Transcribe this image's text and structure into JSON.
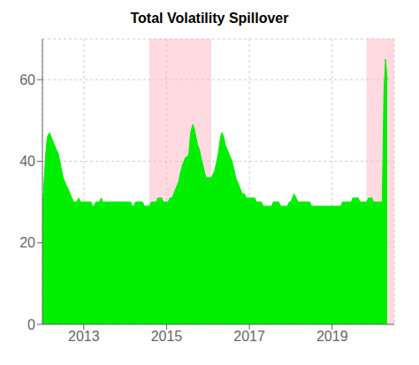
{
  "chart_data": {
    "type": "area",
    "title": "Total Volatility Spillover",
    "color": "#00ee00",
    "grid": true,
    "xlim": [
      2012.0,
      2020.5
    ],
    "xticks": [
      2013,
      2015,
      2017,
      2019
    ],
    "ylim": [
      0,
      70
    ],
    "yticks": [
      0,
      20,
      40,
      60
    ],
    "shaded_regions": {
      "color": "#ffb6c1",
      "ranges": [
        [
          2014.58,
          2016.08
        ],
        [
          2019.83,
          2020.5
        ]
      ]
    },
    "x": [
      2012.0,
      2012.04,
      2012.08,
      2012.12,
      2012.17,
      2012.21,
      2012.25,
      2012.29,
      2012.33,
      2012.38,
      2012.42,
      2012.46,
      2012.5,
      2012.54,
      2012.58,
      2012.63,
      2012.67,
      2012.71,
      2012.75,
      2012.79,
      2012.83,
      2012.88,
      2012.92,
      2012.96,
      2013.0,
      2013.04,
      2013.08,
      2013.13,
      2013.17,
      2013.21,
      2013.25,
      2013.29,
      2013.33,
      2013.38,
      2013.42,
      2013.46,
      2013.5,
      2013.54,
      2013.58,
      2013.63,
      2013.67,
      2013.71,
      2013.75,
      2013.79,
      2013.83,
      2013.88,
      2013.92,
      2013.96,
      2014.0,
      2014.04,
      2014.08,
      2014.13,
      2014.17,
      2014.21,
      2014.25,
      2014.29,
      2014.33,
      2014.38,
      2014.42,
      2014.46,
      2014.5,
      2014.54,
      2014.58,
      2014.63,
      2014.67,
      2014.71,
      2014.75,
      2014.79,
      2014.83,
      2014.88,
      2014.92,
      2014.96,
      2015.0,
      2015.04,
      2015.08,
      2015.13,
      2015.17,
      2015.21,
      2015.25,
      2015.29,
      2015.33,
      2015.38,
      2015.42,
      2015.46,
      2015.5,
      2015.54,
      2015.58,
      2015.63,
      2015.67,
      2015.71,
      2015.75,
      2015.79,
      2015.83,
      2015.88,
      2015.92,
      2015.96,
      2016.0,
      2016.04,
      2016.08,
      2016.13,
      2016.17,
      2016.21,
      2016.25,
      2016.29,
      2016.33,
      2016.38,
      2016.42,
      2016.46,
      2016.5,
      2016.54,
      2016.58,
      2016.63,
      2016.67,
      2016.71,
      2016.75,
      2016.79,
      2016.83,
      2016.88,
      2016.92,
      2016.96,
      2017.0,
      2017.04,
      2017.08,
      2017.13,
      2017.17,
      2017.21,
      2017.25,
      2017.29,
      2017.33,
      2017.38,
      2017.42,
      2017.46,
      2017.5,
      2017.54,
      2017.58,
      2017.63,
      2017.67,
      2017.71,
      2017.75,
      2017.79,
      2017.83,
      2017.88,
      2017.92,
      2017.96,
      2018.0,
      2018.04,
      2018.08,
      2018.13,
      2018.17,
      2018.21,
      2018.25,
      2018.29,
      2018.33,
      2018.38,
      2018.42,
      2018.46,
      2018.5,
      2018.54,
      2018.58,
      2018.63,
      2018.67,
      2018.71,
      2018.75,
      2018.79,
      2018.83,
      2018.88,
      2018.92,
      2018.96,
      2019.0,
      2019.04,
      2019.08,
      2019.13,
      2019.17,
      2019.21,
      2019.25,
      2019.29,
      2019.33,
      2019.38,
      2019.42,
      2019.46,
      2019.5,
      2019.54,
      2019.58,
      2019.63,
      2019.67,
      2019.71,
      2019.75,
      2019.79,
      2019.83,
      2019.88,
      2019.92,
      2019.96,
      2020.0,
      2020.04,
      2020.08,
      2020.13,
      2020.17,
      2020.21,
      2020.25,
      2020.29,
      2020.33
    ],
    "values": [
      28,
      35,
      42,
      46,
      47,
      46,
      45,
      44,
      43,
      42,
      40,
      38,
      36,
      35,
      34,
      33,
      32,
      31,
      30,
      30,
      30,
      31,
      30,
      30,
      30,
      30,
      30,
      30,
      30,
      29,
      29,
      30,
      30,
      30,
      31,
      30,
      30,
      30,
      30,
      30,
      30,
      30,
      30,
      30,
      30,
      30,
      30,
      30,
      30,
      30,
      30,
      30,
      29,
      29,
      30,
      30,
      30,
      30,
      30,
      29,
      29,
      29,
      29,
      30,
      30,
      30,
      30,
      31,
      31,
      31,
      30,
      30,
      30,
      30,
      31,
      31,
      32,
      33,
      34,
      35,
      37,
      39,
      40,
      41,
      41,
      42,
      47,
      49,
      48,
      46,
      44,
      43,
      41,
      39,
      37,
      36,
      36,
      36,
      36,
      37,
      38,
      40,
      42,
      45,
      47,
      46,
      44,
      43,
      42,
      41,
      40,
      38,
      36,
      35,
      34,
      33,
      32,
      32,
      31,
      31,
      31,
      31,
      31,
      31,
      30,
      30,
      30,
      30,
      29,
      29,
      29,
      29,
      29,
      29,
      30,
      30,
      30,
      30,
      29,
      29,
      29,
      29,
      29,
      30,
      30,
      31,
      32,
      31,
      30,
      30,
      30,
      30,
      30,
      30,
      30,
      30,
      29,
      29,
      29,
      29,
      29,
      29,
      29,
      29,
      29,
      29,
      29,
      29,
      29,
      29,
      29,
      29,
      29,
      29,
      30,
      30,
      30,
      30,
      30,
      30,
      31,
      31,
      31,
      31,
      30,
      30,
      30,
      30,
      30,
      31,
      31,
      31,
      30,
      30,
      30,
      30,
      30,
      30,
      57,
      65,
      60
    ]
  }
}
